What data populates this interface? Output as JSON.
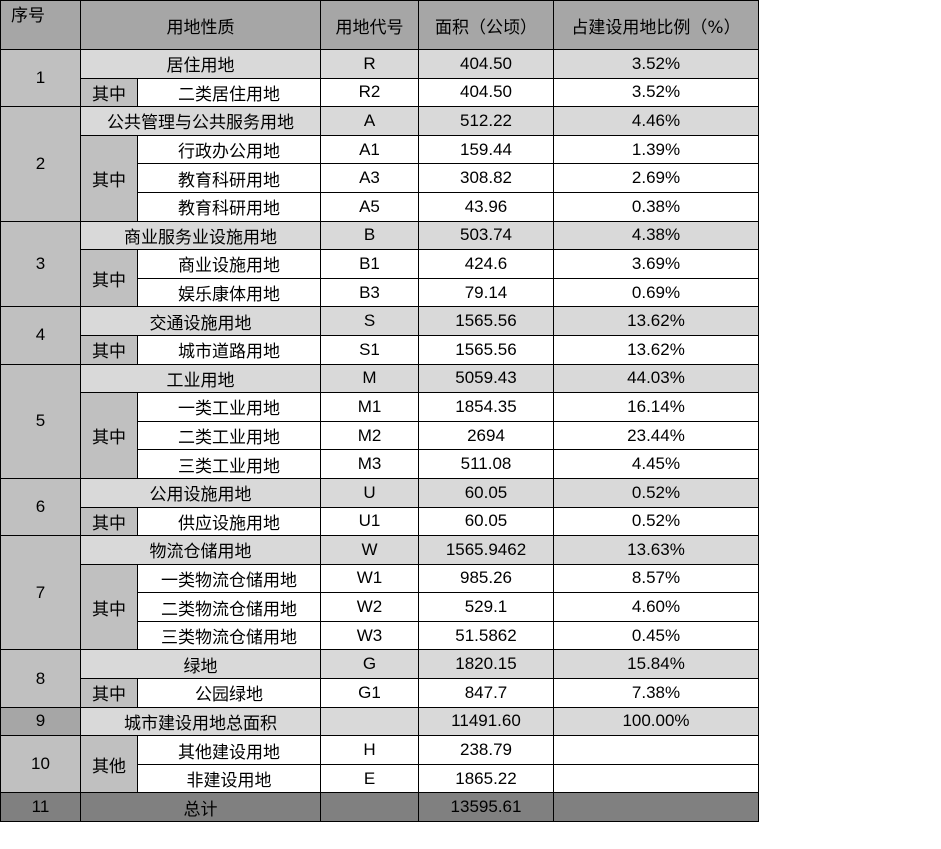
{
  "header": {
    "seq": "序号",
    "nature": "用地性质",
    "code": "用地代号",
    "area": "面积（公顷）",
    "ratio": "占建设用地比例（%）"
  },
  "groups": [
    {
      "seq": "1",
      "name": "居住用地",
      "code": "R",
      "area": "404.50",
      "ratio": "3.52%",
      "sub_label": "其中",
      "subs": [
        {
          "name": "二类居住用地",
          "code": "R2",
          "area": "404.50",
          "ratio": "3.52%"
        }
      ]
    },
    {
      "seq": "2",
      "name": "公共管理与公共服务用地",
      "code": "A",
      "area": "512.22",
      "ratio": "4.46%",
      "sub_label": "其中",
      "subs": [
        {
          "name": "行政办公用地",
          "code": "A1",
          "area": "159.44",
          "ratio": "1.39%"
        },
        {
          "name": "教育科研用地",
          "code": "A3",
          "area": "308.82",
          "ratio": "2.69%"
        },
        {
          "name": "教育科研用地",
          "code": "A5",
          "area": "43.96",
          "ratio": "0.38%"
        }
      ]
    },
    {
      "seq": "3",
      "name": "商业服务业设施用地",
      "code": "B",
      "area": "503.74",
      "ratio": "4.38%",
      "sub_label": "其中",
      "subs": [
        {
          "name": "商业设施用地",
          "code": "B1",
          "area": "424.6",
          "ratio": "3.69%"
        },
        {
          "name": "娱乐康体用地",
          "code": "B3",
          "area": "79.14",
          "ratio": "0.69%"
        }
      ]
    },
    {
      "seq": "4",
      "name": "交通设施用地",
      "code": "S",
      "area": "1565.56",
      "ratio": "13.62%",
      "sub_label": "其中",
      "subs": [
        {
          "name": "城市道路用地",
          "code": "S1",
          "area": "1565.56",
          "ratio": "13.62%"
        }
      ]
    },
    {
      "seq": "5",
      "name": "工业用地",
      "code": "M",
      "area": "5059.43",
      "ratio": "44.03%",
      "sub_label": "其中",
      "subs": [
        {
          "name": "一类工业用地",
          "code": "M1",
          "area": "1854.35",
          "ratio": "16.14%"
        },
        {
          "name": "二类工业用地",
          "code": "M2",
          "area": "2694",
          "ratio": "23.44%"
        },
        {
          "name": "三类工业用地",
          "code": "M3",
          "area": "511.08",
          "ratio": "4.45%"
        }
      ]
    },
    {
      "seq": "6",
      "name": "公用设施用地",
      "code": "U",
      "area": "60.05",
      "ratio": "0.52%",
      "sub_label": "其中",
      "subs": [
        {
          "name": "供应设施用地",
          "code": "U1",
          "area": "60.05",
          "ratio": "0.52%"
        }
      ]
    },
    {
      "seq": "7",
      "name": "物流仓储用地",
      "code": "W",
      "area": "1565.9462",
      "ratio": "13.63%",
      "sub_label": "其中",
      "subs": [
        {
          "name": "一类物流仓储用地",
          "code": "W1",
          "area": "985.26",
          "ratio": "8.57%"
        },
        {
          "name": "二类物流仓储用地",
          "code": "W2",
          "area": "529.1",
          "ratio": "4.60%"
        },
        {
          "name": "三类物流仓储用地",
          "code": "W3",
          "area": "51.5862",
          "ratio": "0.45%"
        }
      ]
    },
    {
      "seq": "8",
      "name": "绿地",
      "code": "G",
      "area": "1820.15",
      "ratio": "15.84%",
      "sub_label": "其中",
      "subs": [
        {
          "name": "公园绿地",
          "code": "G1",
          "area": "847.7",
          "ratio": "7.38%"
        }
      ]
    }
  ],
  "urban_total": {
    "seq": "9",
    "name": "城市建设用地总面积",
    "code": "",
    "area": "11491.60",
    "ratio": "100.00%"
  },
  "other": {
    "seq": "10",
    "sub_label": "其他",
    "subs": [
      {
        "name": "其他建设用地",
        "code": "H",
        "area": "238.79",
        "ratio": ""
      },
      {
        "name": "非建设用地",
        "code": "E",
        "area": "1865.22",
        "ratio": ""
      }
    ]
  },
  "grand_total": {
    "seq": "11",
    "name": "总计",
    "code": "",
    "area": "13595.61",
    "ratio": ""
  }
}
